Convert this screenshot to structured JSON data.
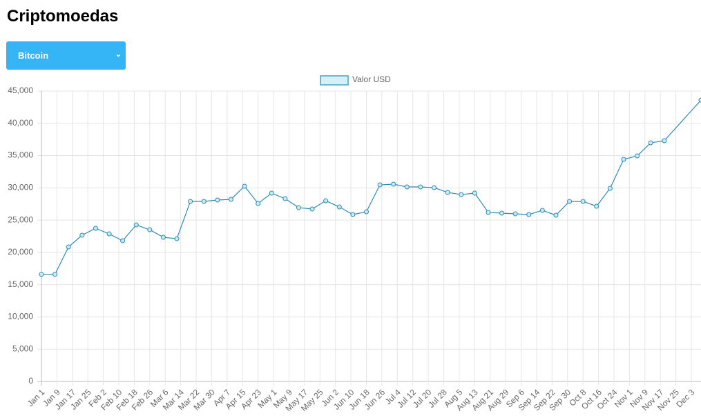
{
  "header": {
    "title": "Criptomoedas",
    "select": "Bitcoin"
  },
  "chart_data": {
    "type": "line",
    "series": [
      {
        "name": "Valor USD",
        "color": "#2b8cb3",
        "x": [
          0,
          7,
          14,
          21,
          28,
          35,
          42,
          49,
          56,
          63,
          70,
          77,
          84,
          91,
          98,
          105,
          112,
          119,
          126,
          133,
          140,
          147,
          154,
          161,
          168,
          175,
          182,
          189,
          196,
          203,
          210,
          217,
          224,
          231,
          238,
          245,
          252,
          259,
          266,
          273,
          280,
          287,
          294,
          301,
          308,
          315,
          322,
          341
        ],
        "values": [
          16600,
          16600,
          20840,
          22660,
          23730,
          22870,
          21800,
          24260,
          23510,
          22340,
          22120,
          27900,
          27900,
          28110,
          28220,
          30250,
          27580,
          29180,
          28320,
          26930,
          26720,
          28000,
          27040,
          25870,
          26290,
          30460,
          30570,
          30140,
          30140,
          30030,
          29290,
          28960,
          29180,
          26190,
          26080,
          25970,
          25870,
          26510,
          25760,
          27900,
          27900,
          27150,
          29930,
          34420,
          34950,
          36980,
          37300,
          43600
        ]
      }
    ],
    "xlim": [
      0,
      341
    ],
    "xticks": [
      {
        "value": 0,
        "label": "Jan 1"
      },
      {
        "value": 8,
        "label": "Jan 9"
      },
      {
        "value": 16,
        "label": "Jan 17"
      },
      {
        "value": 24,
        "label": "Jan 25"
      },
      {
        "value": 32,
        "label": "Feb 2"
      },
      {
        "value": 40,
        "label": "Feb 10"
      },
      {
        "value": 48,
        "label": "Feb 18"
      },
      {
        "value": 56,
        "label": "Feb 26"
      },
      {
        "value": 64,
        "label": "Mar 6"
      },
      {
        "value": 72,
        "label": "Mar 14"
      },
      {
        "value": 80,
        "label": "Mar 22"
      },
      {
        "value": 88,
        "label": "Mar 30"
      },
      {
        "value": 96,
        "label": "Apr 7"
      },
      {
        "value": 104,
        "label": "Apr 15"
      },
      {
        "value": 112,
        "label": "Apr 23"
      },
      {
        "value": 120,
        "label": "May 1"
      },
      {
        "value": 128,
        "label": "May 9"
      },
      {
        "value": 136,
        "label": "May 17"
      },
      {
        "value": 144,
        "label": "May 25"
      },
      {
        "value": 152,
        "label": "Jun 2"
      },
      {
        "value": 160,
        "label": "Jun 10"
      },
      {
        "value": 168,
        "label": "Jun 18"
      },
      {
        "value": 176,
        "label": "Jun 26"
      },
      {
        "value": 184,
        "label": "Jul 4"
      },
      {
        "value": 192,
        "label": "Jul 12"
      },
      {
        "value": 200,
        "label": "Jul 20"
      },
      {
        "value": 208,
        "label": "Jul 28"
      },
      {
        "value": 216,
        "label": "Aug 5"
      },
      {
        "value": 224,
        "label": "Aug 13"
      },
      {
        "value": 232,
        "label": "Aug 21"
      },
      {
        "value": 240,
        "label": "Aug 29"
      },
      {
        "value": 248,
        "label": "Sep 6"
      },
      {
        "value": 256,
        "label": "Sep 14"
      },
      {
        "value": 264,
        "label": "Sep 22"
      },
      {
        "value": 272,
        "label": "Sep 30"
      },
      {
        "value": 280,
        "label": "Oct 8"
      },
      {
        "value": 288,
        "label": "Oct 16"
      },
      {
        "value": 296,
        "label": "Oct 24"
      },
      {
        "value": 304,
        "label": "Nov 1"
      },
      {
        "value": 312,
        "label": "Nov 9"
      },
      {
        "value": 320,
        "label": "Nov 17"
      },
      {
        "value": 328,
        "label": "Nov 25"
      },
      {
        "value": 336,
        "label": "Dec 3"
      }
    ],
    "ylim": [
      0,
      45000
    ],
    "yticks": [
      0,
      {
        "value": 5000,
        "label": "5,000"
      },
      {
        "value": 10000,
        "label": "10,000"
      },
      {
        "value": 15000,
        "label": "15,000"
      },
      {
        "value": 20000,
        "label": "20,000"
      },
      {
        "value": 25000,
        "label": "25,000"
      },
      {
        "value": 30000,
        "label": "30,000"
      },
      {
        "value": 35000,
        "label": "35,000"
      },
      {
        "value": 40000,
        "label": "40,000"
      },
      {
        "value": 45000,
        "label": "45,000"
      }
    ],
    "grid": true,
    "legend": "top"
  }
}
